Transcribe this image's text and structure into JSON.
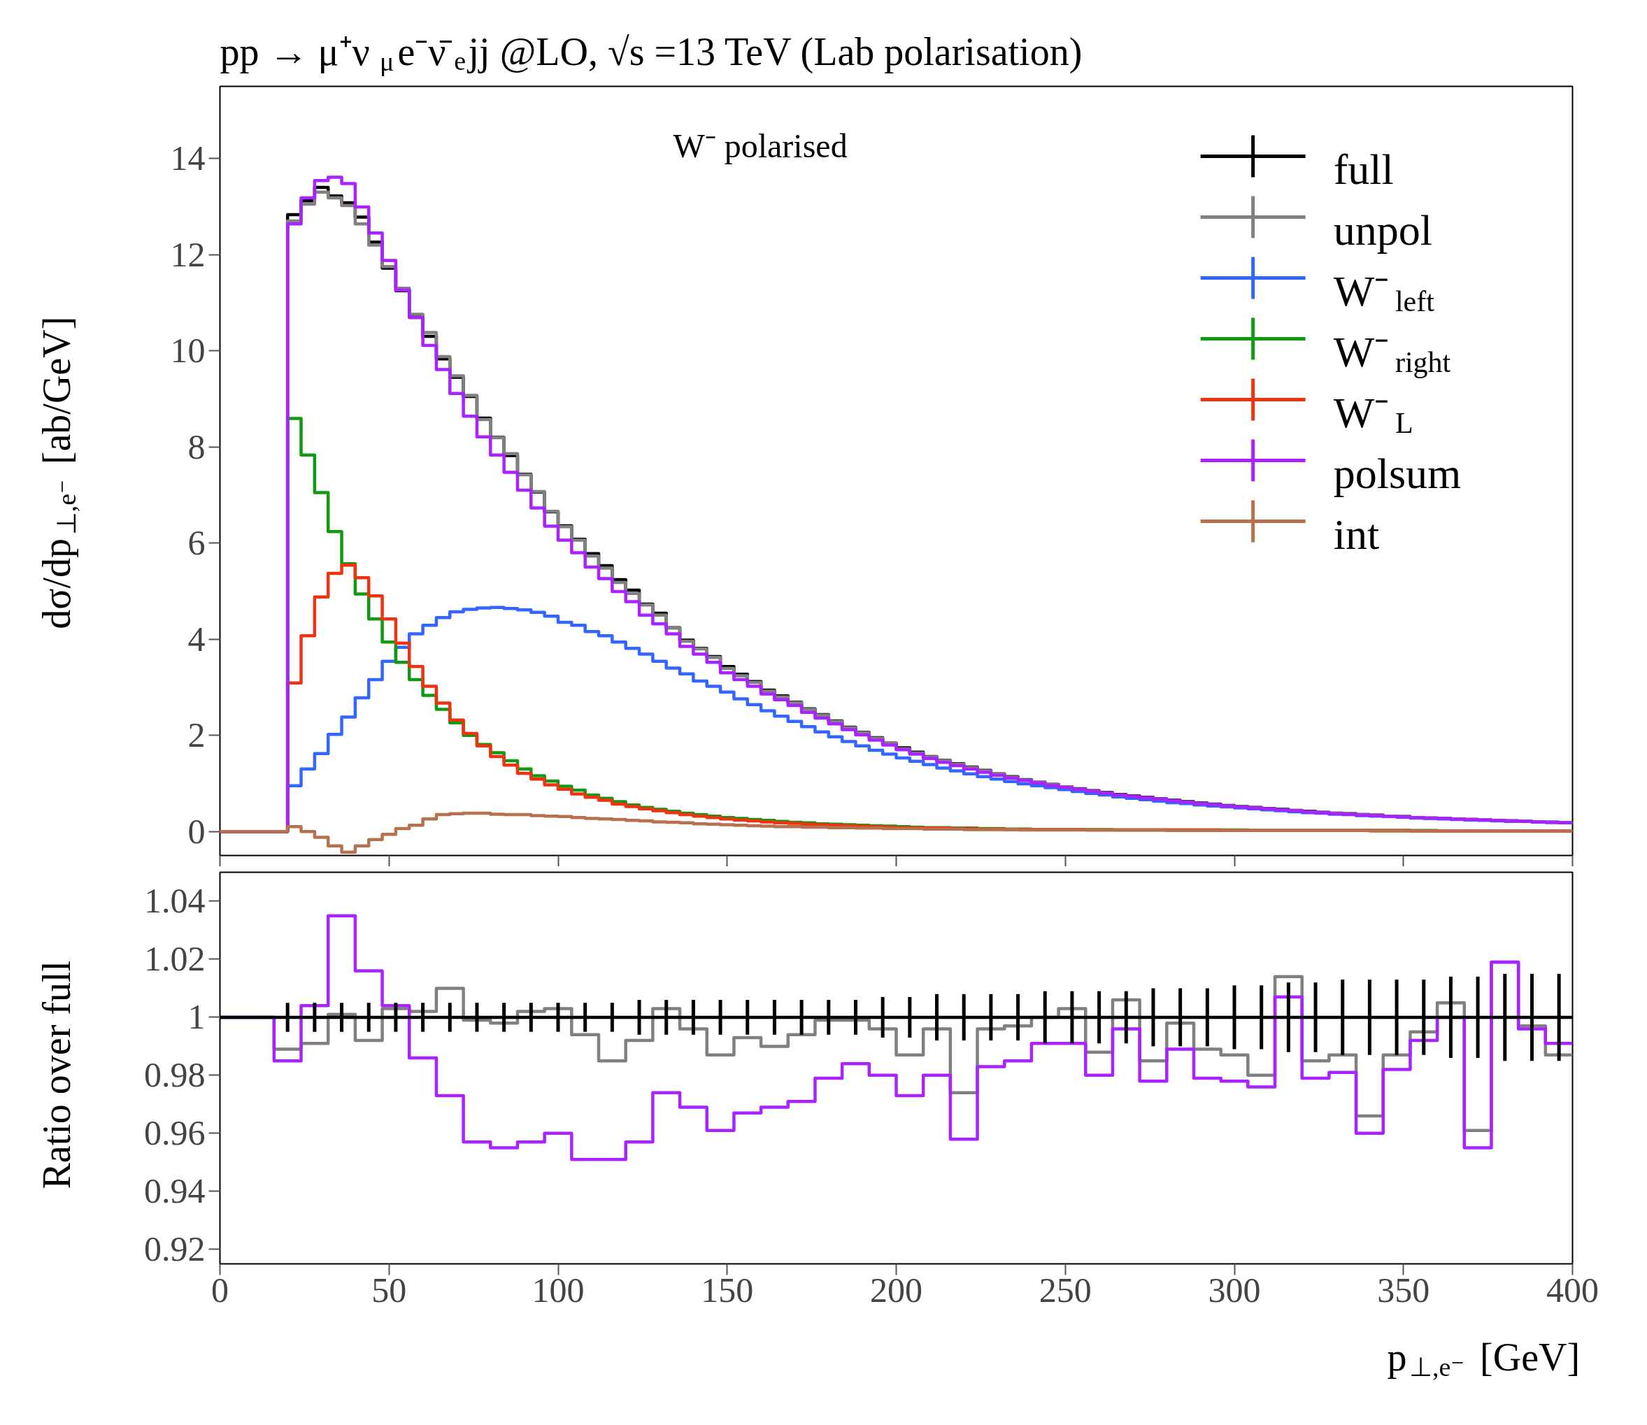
{
  "chart_data": [
    {
      "type": "histogram",
      "title": "pp → μ⁺ν$_{μ}$e⁻ν̄$_{e}$jj @LO, √s =13 TeV (Lab polarisation)",
      "ylabel": "dσ/dp$_{⊥,e⁻}$ [ab/GeV]",
      "annotations": [
        "W⁻ polarised"
      ],
      "legend": "top right",
      "tick_labels": "y",
      "xlim": [
        0,
        400
      ],
      "ylim": [
        -0.5,
        15.5
      ],
      "xticks": [
        0,
        50,
        100,
        150,
        200,
        250,
        300,
        350,
        400
      ],
      "yticks": [
        0,
        2,
        4,
        6,
        8,
        10,
        12,
        14
      ],
      "bins": [
        0,
        20,
        24,
        28,
        32,
        36,
        40,
        44,
        48,
        52,
        56,
        60,
        64,
        68,
        72,
        76,
        80,
        84,
        88,
        92,
        96,
        100,
        104,
        108,
        112,
        116,
        120,
        124,
        128,
        132,
        136,
        140,
        144,
        148,
        152,
        156,
        160,
        164,
        168,
        172,
        176,
        180,
        184,
        188,
        192,
        196,
        200,
        204,
        208,
        212,
        216,
        220,
        224,
        228,
        232,
        236,
        240,
        244,
        248,
        252,
        256,
        260,
        264,
        268,
        272,
        276,
        280,
        284,
        288,
        292,
        296,
        300,
        304,
        308,
        312,
        316,
        320,
        324,
        328,
        332,
        336,
        340,
        344,
        348,
        352,
        356,
        360,
        364,
        368,
        372,
        376,
        380,
        384,
        388,
        392,
        396,
        400
      ],
      "series": [
        {
          "name": "full",
          "color": "#000000",
          "values": [
            0,
            12.83,
            13.12,
            13.4,
            13.22,
            13.08,
            12.78,
            12.26,
            11.72,
            11.25,
            10.72,
            10.3,
            9.83,
            9.45,
            9.05,
            8.6,
            8.2,
            7.82,
            7.43,
            7.06,
            6.65,
            6.36,
            6.08,
            5.78,
            5.53,
            5.24,
            5.02,
            4.73,
            4.54,
            4.24,
            3.98,
            3.81,
            3.64,
            3.43,
            3.27,
            3.12,
            2.94,
            2.82,
            2.69,
            2.55,
            2.43,
            2.3,
            2.17,
            2.06,
            1.95,
            1.84,
            1.74,
            1.65,
            1.56,
            1.48,
            1.41,
            1.34,
            1.27,
            1.2,
            1.14,
            1.08,
            1.03,
            0.98,
            0.93,
            0.89,
            0.85,
            0.81,
            0.77,
            0.74,
            0.71,
            0.68,
            0.65,
            0.62,
            0.59,
            0.57,
            0.54,
            0.52,
            0.5,
            0.48,
            0.46,
            0.44,
            0.42,
            0.4,
            0.38,
            0.37,
            0.35,
            0.34,
            0.32,
            0.31,
            0.29,
            0.28,
            0.27,
            0.26,
            0.25,
            0.24,
            0.23,
            0.22,
            0.21,
            0.2,
            0.19,
            0.18
          ]
        },
        {
          "name": "unpol",
          "color": "#808080",
          "values": [
            0,
            12.7,
            13.05,
            13.3,
            13.18,
            13.02,
            12.64,
            12.2,
            11.75,
            11.3,
            10.76,
            10.38,
            9.88,
            9.48,
            9.07,
            8.57,
            8.19,
            7.86,
            7.42,
            7.07,
            6.66,
            6.34,
            6.06,
            5.73,
            5.48,
            5.18,
            4.95,
            4.71,
            4.5,
            4.23,
            3.96,
            3.8,
            3.62,
            3.39,
            3.24,
            3.1,
            2.92,
            2.8,
            2.68,
            2.54,
            2.42,
            2.29,
            2.16,
            2.05,
            1.94,
            1.83,
            1.72,
            1.63,
            1.55,
            1.47,
            1.4,
            1.33,
            1.26,
            1.19,
            1.13,
            1.07,
            1.03,
            0.98,
            0.93,
            0.88,
            0.84,
            0.8,
            0.76,
            0.73,
            0.7,
            0.67,
            0.64,
            0.61,
            0.58,
            0.56,
            0.53,
            0.51,
            0.49,
            0.47,
            0.45,
            0.43,
            0.41,
            0.4,
            0.38,
            0.36,
            0.35,
            0.33,
            0.32,
            0.3,
            0.29,
            0.28,
            0.27,
            0.26,
            0.25,
            0.24,
            0.23,
            0.22,
            0.21,
            0.2,
            0.19,
            0.18
          ]
        },
        {
          "name": "W⁻$_{left}$",
          "color": "#3366ff",
          "values": [
            0,
            0.95,
            1.3,
            1.62,
            2.02,
            2.38,
            2.78,
            3.16,
            3.54,
            3.83,
            4.11,
            4.29,
            4.45,
            4.57,
            4.62,
            4.65,
            4.66,
            4.64,
            4.61,
            4.56,
            4.48,
            4.35,
            4.29,
            4.16,
            4.07,
            3.94,
            3.81,
            3.69,
            3.54,
            3.4,
            3.28,
            3.13,
            3.02,
            2.9,
            2.76,
            2.64,
            2.51,
            2.4,
            2.29,
            2.18,
            2.07,
            1.97,
            1.87,
            1.78,
            1.69,
            1.61,
            1.53,
            1.46,
            1.39,
            1.32,
            1.26,
            1.2,
            1.14,
            1.09,
            1.04,
            0.99,
            0.95,
            0.91,
            0.87,
            0.83,
            0.79,
            0.76,
            0.72,
            0.69,
            0.66,
            0.63,
            0.6,
            0.58,
            0.55,
            0.53,
            0.51,
            0.49,
            0.47,
            0.45,
            0.43,
            0.41,
            0.39,
            0.38,
            0.36,
            0.35,
            0.33,
            0.32,
            0.31,
            0.3,
            0.28,
            0.27,
            0.26,
            0.25,
            0.24,
            0.23,
            0.22,
            0.21,
            0.21,
            0.2,
            0.19,
            0.18
          ]
        },
        {
          "name": "W⁻$_{right}$",
          "color": "#119911",
          "values": [
            0,
            8.59,
            7.83,
            7.05,
            6.24,
            5.57,
            4.94,
            4.42,
            3.94,
            3.52,
            3.16,
            2.83,
            2.54,
            2.26,
            2.0,
            1.81,
            1.64,
            1.47,
            1.3,
            1.16,
            1.05,
            0.94,
            0.86,
            0.76,
            0.69,
            0.62,
            0.55,
            0.5,
            0.46,
            0.42,
            0.38,
            0.35,
            0.32,
            0.29,
            0.27,
            0.25,
            0.23,
            0.21,
            0.19,
            0.18,
            0.16,
            0.15,
            0.14,
            0.13,
            0.12,
            0.11,
            0.1,
            0.09,
            0.08,
            0.08,
            0.07,
            0.07,
            0.06,
            0.06,
            0.05,
            0.05,
            0.04,
            0.04,
            0.04,
            0.04,
            0.04,
            0.04,
            0.03,
            0.03,
            0.03,
            0.03,
            0.03,
            0.03,
            0.03,
            0.03,
            0.03,
            0.03,
            0.02,
            0.02,
            0.02,
            0.02,
            0.02,
            0.02,
            0.02,
            0.02,
            0.02,
            0.02,
            0.02,
            0.02,
            0.02,
            0.02,
            0.01,
            0.01,
            0.01,
            0.01,
            0.01,
            0.01,
            0.01,
            0.01,
            0.01,
            0.01
          ]
        },
        {
          "name": "W⁻$_{L}$",
          "color": "#ee3311",
          "values": [
            0,
            3.09,
            4.07,
            4.88,
            5.37,
            5.54,
            5.28,
            4.9,
            4.42,
            3.92,
            3.43,
            3.02,
            2.67,
            2.32,
            2.04,
            1.78,
            1.56,
            1.38,
            1.21,
            1.09,
            0.97,
            0.88,
            0.78,
            0.71,
            0.65,
            0.57,
            0.52,
            0.47,
            0.43,
            0.39,
            0.35,
            0.32,
            0.29,
            0.26,
            0.24,
            0.22,
            0.2,
            0.18,
            0.17,
            0.15,
            0.14,
            0.13,
            0.12,
            0.11,
            0.1,
            0.09,
            0.08,
            0.08,
            0.07,
            0.07,
            0.06,
            0.06,
            0.05,
            0.05,
            0.04,
            0.04,
            0.04,
            0.04,
            0.04,
            0.04,
            0.03,
            0.03,
            0.03,
            0.03,
            0.03,
            0.03,
            0.03,
            0.03,
            0.03,
            0.03,
            0.02,
            0.02,
            0.02,
            0.02,
            0.02,
            0.02,
            0.02,
            0.02,
            0.02,
            0.02,
            0.02,
            0.02,
            0.02,
            0.02,
            0.01,
            0.01,
            0.01,
            0.01,
            0.01,
            0.01,
            0.01,
            0.01,
            0.01,
            0.01,
            0.01,
            0.01
          ]
        },
        {
          "name": "polsum",
          "color": "#aa22ff",
          "values": [
            0,
            12.64,
            13.18,
            13.54,
            13.61,
            13.48,
            12.99,
            12.45,
            11.88,
            11.26,
            10.69,
            10.11,
            9.61,
            9.11,
            8.64,
            8.21,
            7.83,
            7.47,
            7.1,
            6.73,
            6.35,
            6.06,
            5.8,
            5.5,
            5.26,
            4.99,
            4.78,
            4.5,
            4.32,
            4.11,
            3.85,
            3.69,
            3.52,
            3.3,
            3.16,
            3.02,
            2.86,
            2.74,
            2.62,
            2.48,
            2.36,
            2.24,
            2.12,
            2.01,
            1.9,
            1.8,
            1.7,
            1.61,
            1.52,
            1.44,
            1.37,
            1.3,
            1.23,
            1.17,
            1.11,
            1.06,
            1.01,
            0.96,
            0.92,
            0.88,
            0.84,
            0.8,
            0.76,
            0.73,
            0.7,
            0.67,
            0.64,
            0.61,
            0.58,
            0.56,
            0.53,
            0.51,
            0.49,
            0.47,
            0.45,
            0.43,
            0.41,
            0.39,
            0.37,
            0.36,
            0.34,
            0.33,
            0.31,
            0.3,
            0.29,
            0.28,
            0.27,
            0.26,
            0.25,
            0.24,
            0.23,
            0.22,
            0.21,
            0.2,
            0.19,
            0.18
          ]
        },
        {
          "name": "int",
          "color": "#b8714f",
          "values": [
            0,
            0.1,
            0.0,
            -0.12,
            -0.3,
            -0.43,
            -0.3,
            -0.17,
            -0.06,
            0.06,
            0.13,
            0.26,
            0.35,
            0.37,
            0.38,
            0.38,
            0.36,
            0.35,
            0.35,
            0.33,
            0.32,
            0.31,
            0.29,
            0.27,
            0.26,
            0.25,
            0.23,
            0.22,
            0.2,
            0.19,
            0.18,
            0.16,
            0.15,
            0.14,
            0.13,
            0.12,
            0.11,
            0.1,
            0.1,
            0.09,
            0.09,
            0.08,
            0.08,
            0.07,
            0.07,
            0.06,
            0.06,
            0.06,
            0.05,
            0.05,
            0.05,
            0.04,
            0.04,
            0.04,
            0.04,
            0.03,
            0.03,
            0.03,
            0.03,
            0.03,
            0.03,
            0.03,
            0.03,
            0.03,
            0.03,
            0.03,
            0.02,
            0.02,
            0.02,
            0.02,
            0.02,
            0.02,
            0.02,
            0.02,
            0.02,
            0.02,
            0.02,
            0.02,
            0.02,
            0.02,
            0.02,
            0.01,
            0.01,
            0.01,
            0.01,
            0.01,
            0.01,
            0.01,
            0.01,
            0.01,
            0.01,
            0.01,
            0.01,
            0.01,
            0.01,
            0.01
          ]
        }
      ]
    },
    {
      "type": "histogram",
      "xlabel": "p$_{⊥,e⁻}$ [GeV]",
      "ylabel": "Ratio over full",
      "xlim": [
        0,
        400
      ],
      "ylim": [
        0.915,
        1.05
      ],
      "xticks": [
        0,
        50,
        100,
        150,
        200,
        250,
        300,
        350,
        400
      ],
      "yticks": [
        0.92,
        0.94,
        0.96,
        0.98,
        1,
        1.02,
        1.04
      ],
      "bins": [
        0,
        16,
        24,
        32,
        40,
        48,
        56,
        64,
        72,
        80,
        88,
        96,
        104,
        112,
        120,
        128,
        136,
        144,
        152,
        160,
        168,
        176,
        184,
        192,
        200,
        208,
        216,
        224,
        232,
        240,
        248,
        256,
        264,
        272,
        280,
        288,
        296,
        304,
        312,
        320,
        328,
        336,
        344,
        352,
        360,
        368,
        376,
        384,
        392,
        400
      ],
      "series": [
        {
          "color": "#808080",
          "values": [
            1,
            0.989,
            0.991,
            1.001,
            0.992,
            1.003,
            1.002,
            1.01,
            0.999,
            0.998,
            1.002,
            1.003,
            0.994,
            0.985,
            0.992,
            1.003,
            0.996,
            0.987,
            0.993,
            0.99,
            0.994,
            0.999,
            0.999,
            0.996,
            0.987,
            0.996,
            0.974,
            0.996,
            0.997,
            1.0,
            1.003,
            0.988,
            1.006,
            0.985,
            0.998,
            0.989,
            0.987,
            0.98,
            1.014,
            0.985,
            0.987,
            0.966,
            0.987,
            0.995,
            1.005,
            0.961,
            1.019,
            0.997,
            0.987
          ]
        },
        {
          "color": "#aa22ff",
          "values": [
            1,
            0.985,
            1.004,
            1.035,
            1.016,
            1.004,
            0.986,
            0.973,
            0.957,
            0.955,
            0.957,
            0.96,
            0.951,
            0.951,
            0.957,
            0.974,
            0.969,
            0.961,
            0.967,
            0.969,
            0.971,
            0.979,
            0.984,
            0.98,
            0.973,
            0.98,
            0.958,
            0.983,
            0.985,
            0.991,
            0.991,
            0.98,
            0.996,
            0.978,
            0.989,
            0.979,
            0.978,
            0.976,
            1.007,
            0.979,
            0.981,
            0.96,
            0.982,
            0.992,
            1.0,
            0.955,
            1.019,
            0.996,
            0.991
          ]
        },
        {
          "type": "line",
          "color": "#000000",
          "x": [
            0,
            20,
            28,
            36,
            44,
            52,
            60,
            68,
            76,
            84,
            92,
            100,
            108,
            116,
            124,
            132,
            140,
            148,
            156,
            164,
            172,
            180,
            188,
            196,
            204,
            212,
            220,
            228,
            236,
            244,
            252,
            260,
            268,
            276,
            284,
            292,
            300,
            308,
            316,
            324,
            332,
            340,
            348,
            356,
            364,
            372,
            380,
            388,
            396,
            400
          ],
          "values": [
            1,
            1,
            1,
            1,
            1,
            1,
            1,
            1,
            1,
            1,
            1,
            1,
            1,
            1,
            1,
            1,
            1,
            1,
            1,
            1,
            1,
            1,
            1,
            1,
            1,
            1,
            1,
            1,
            1,
            1,
            1,
            1,
            1,
            1,
            1,
            1,
            1,
            1,
            1,
            1,
            1,
            1,
            1,
            1,
            1,
            1,
            1,
            1,
            1,
            1
          ],
          "errors": [
            null,
            0.005,
            0.005,
            0.005,
            0.005,
            0.005,
            0.005,
            0.005,
            0.005,
            0.005,
            0.005,
            0.005,
            0.005,
            0.005,
            0.006,
            0.006,
            0.006,
            0.006,
            0.006,
            0.006,
            0.006,
            0.006,
            0.006,
            0.007,
            0.007,
            0.008,
            0.008,
            0.008,
            0.008,
            0.009,
            0.009,
            0.009,
            0.009,
            0.01,
            0.01,
            0.01,
            0.011,
            0.011,
            0.012,
            0.012,
            0.013,
            0.013,
            0.013,
            0.013,
            0.014,
            0.014,
            0.015,
            0.015,
            0.015,
            null
          ]
        }
      ]
    }
  ]
}
